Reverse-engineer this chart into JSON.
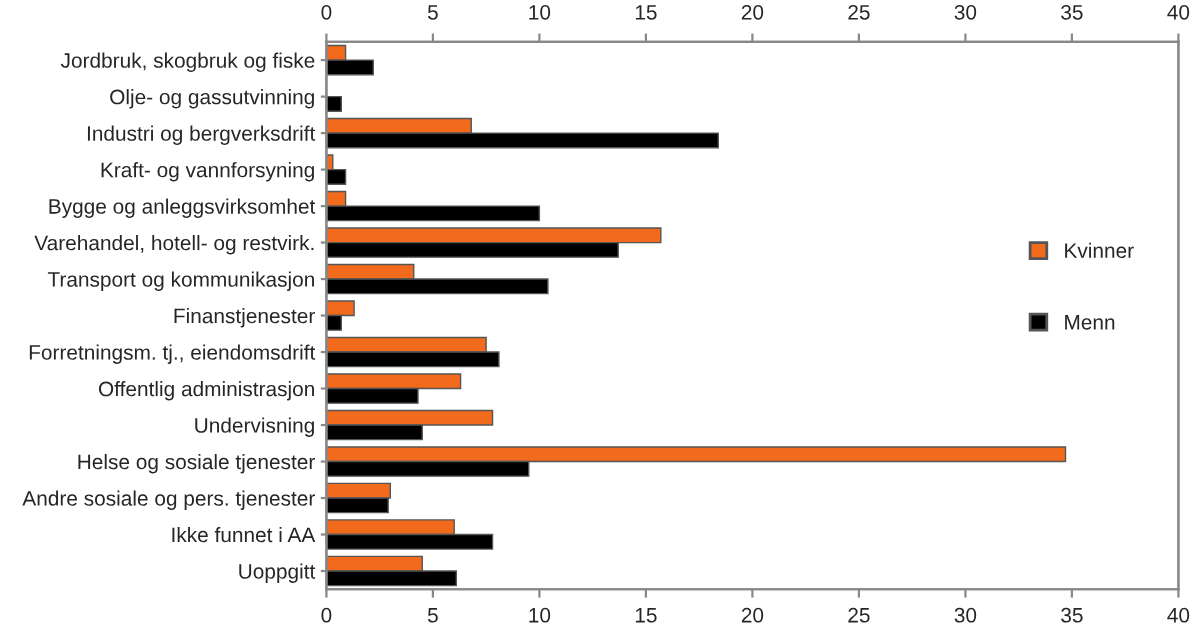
{
  "chart_data": {
    "type": "bar",
    "orientation": "horizontal",
    "categories": [
      "Jordbruk, skogbruk og fiske",
      "Olje- og gassutvinning",
      "Industri og bergverksdrift",
      "Kraft- og vannforsyning",
      "Bygge og anleggsvirksomhet",
      "Varehandel, hotell- og restvirk.",
      "Transport og kommunikasjon",
      "Finanstjenester",
      "Forretningsm. tj., eiendomsdrift",
      "Offentlig administrasjon",
      "Undervisning",
      "Helse og sosiale tjenester",
      "Andre sosiale og pers. tjenester",
      "Ikke funnet i AA",
      "Uoppgitt"
    ],
    "series": [
      {
        "name": "Kvinner",
        "color": "#f26a1b",
        "values": [
          0.9,
          null,
          6.8,
          0.3,
          0.9,
          15.7,
          4.1,
          1.3,
          7.5,
          6.3,
          7.8,
          34.7,
          3.0,
          6.0,
          4.5
        ]
      },
      {
        "name": "Menn",
        "color": "#000000",
        "values": [
          2.2,
          0.7,
          18.4,
          0.9,
          10.0,
          13.7,
          10.4,
          0.7,
          8.1,
          4.3,
          4.5,
          9.5,
          2.9,
          7.8,
          6.1
        ]
      }
    ],
    "xlim": [
      0,
      40
    ],
    "xticks": [
      0,
      5,
      10,
      15,
      20,
      25,
      30,
      35,
      40
    ],
    "x2lim": [
      0,
      40
    ],
    "x2ticks": [
      0,
      5,
      10,
      15,
      20,
      25,
      30,
      35,
      40
    ],
    "grid": false,
    "legend": "right"
  }
}
